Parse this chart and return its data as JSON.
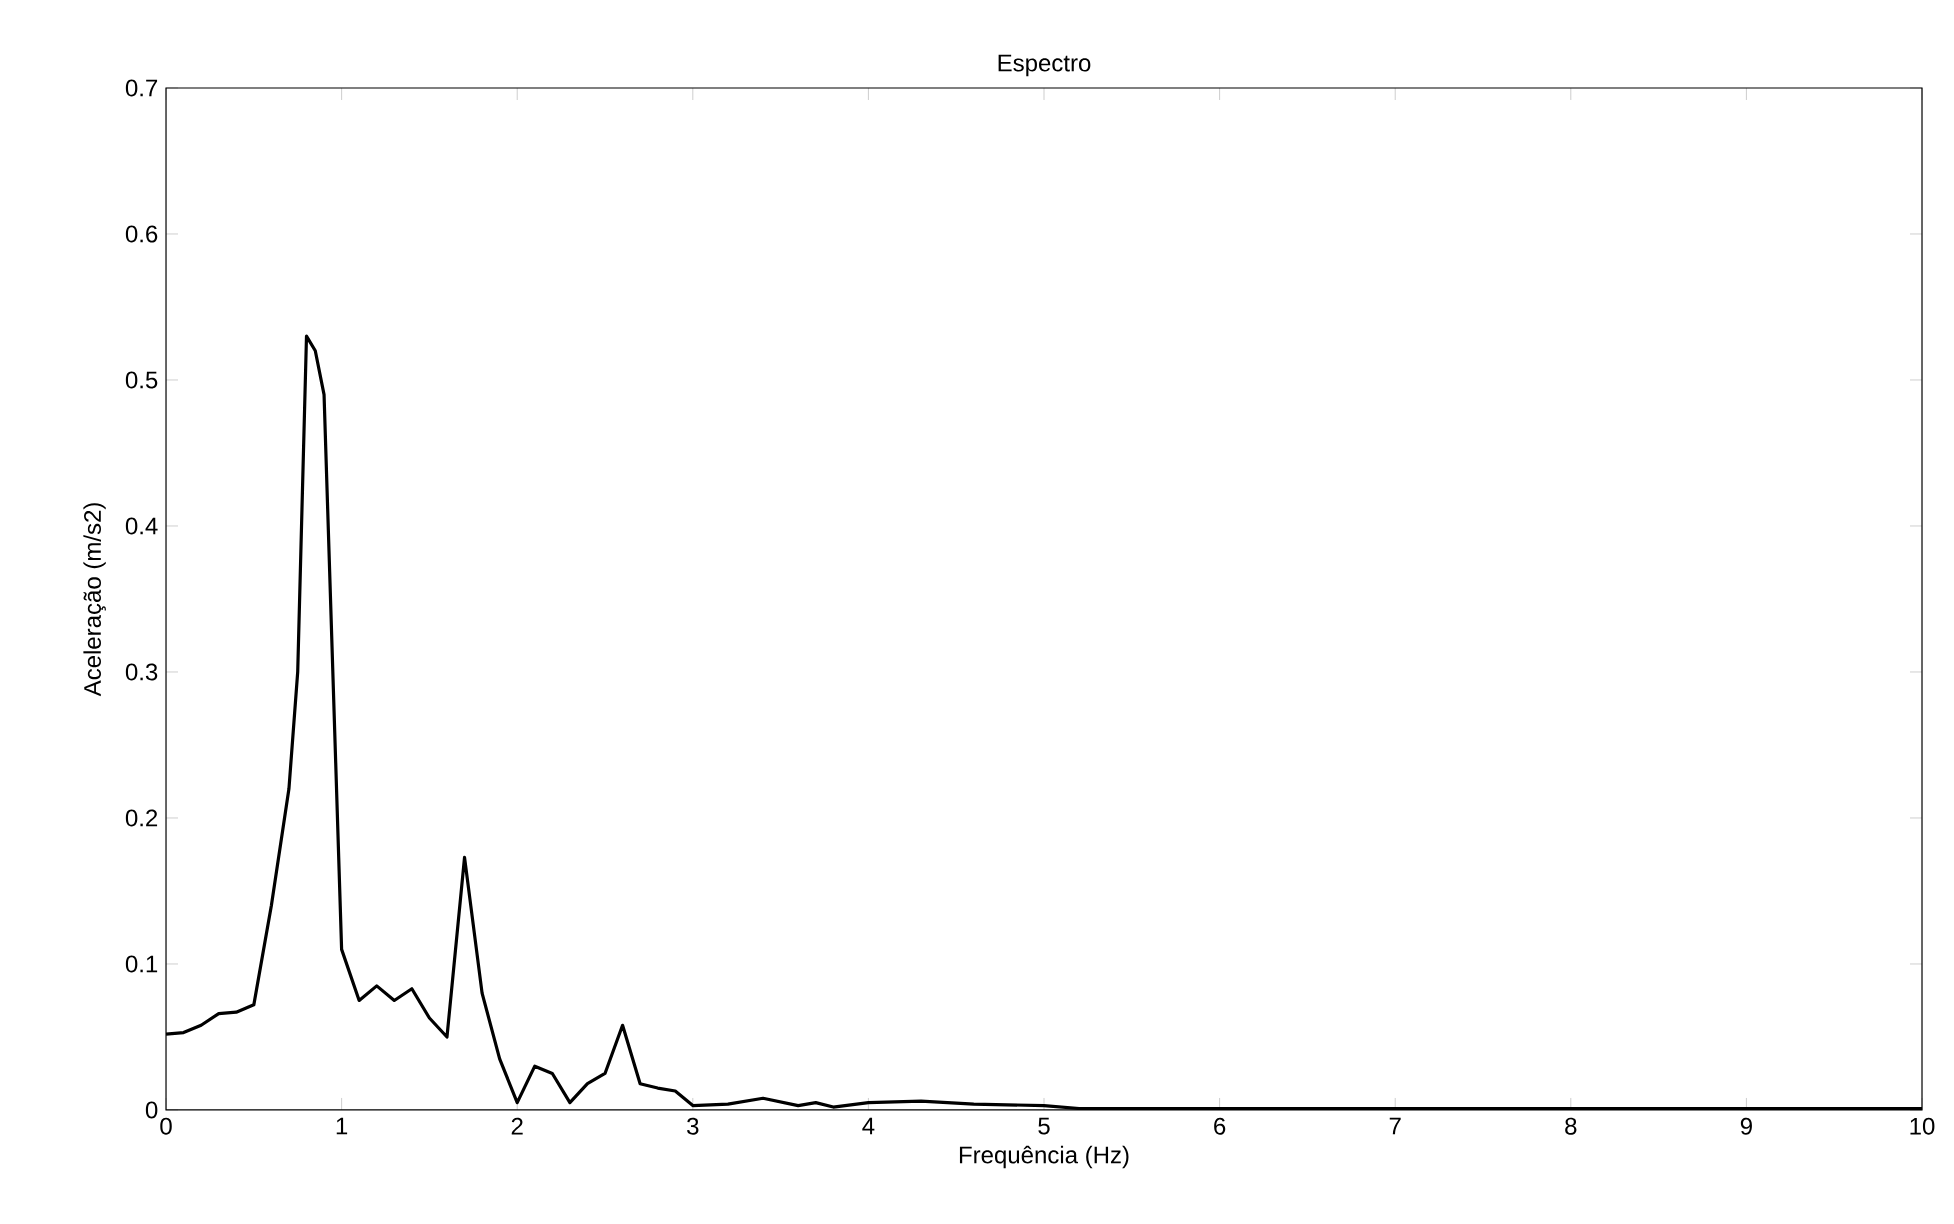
{
  "chart_data": {
    "type": "line",
    "title": "Espectro",
    "xlabel": "Frequência (Hz)",
    "ylabel": "Aceleração (m/s2)",
    "xlim": [
      0,
      10
    ],
    "ylim": [
      0,
      0.7
    ],
    "xticks": [
      0,
      1,
      2,
      3,
      4,
      5,
      6,
      7,
      8,
      9,
      10
    ],
    "yticks": [
      0,
      0.1,
      0.2,
      0.3,
      0.4,
      0.5,
      0.6,
      0.7
    ],
    "grid": false,
    "marker": "none",
    "line_style": "solid",
    "series": [
      {
        "color": "#000000",
        "x": [
          0,
          0.1,
          0.2,
          0.3,
          0.4,
          0.5,
          0.6,
          0.7,
          0.75,
          0.8,
          0.85,
          0.9,
          0.95,
          1.0,
          1.1,
          1.2,
          1.3,
          1.4,
          1.5,
          1.6,
          1.7,
          1.8,
          1.9,
          2.0,
          2.1,
          2.2,
          2.3,
          2.4,
          2.5,
          2.6,
          2.7,
          2.8,
          2.9,
          3.0,
          3.2,
          3.4,
          3.6,
          3.7,
          3.8,
          4.0,
          4.3,
          4.6,
          5.0,
          5.2,
          6,
          8,
          10
        ],
        "values": [
          0.052,
          0.053,
          0.058,
          0.066,
          0.067,
          0.072,
          0.14,
          0.22,
          0.3,
          0.53,
          0.52,
          0.49,
          0.3,
          0.11,
          0.075,
          0.085,
          0.075,
          0.083,
          0.063,
          0.05,
          0.173,
          0.08,
          0.035,
          0.005,
          0.03,
          0.025,
          0.005,
          0.018,
          0.025,
          0.058,
          0.018,
          0.015,
          0.013,
          0.003,
          0.004,
          0.008,
          0.003,
          0.005,
          0.002,
          0.005,
          0.006,
          0.004,
          0.003,
          0.001,
          0.001,
          0.001,
          0.001
        ]
      }
    ]
  }
}
